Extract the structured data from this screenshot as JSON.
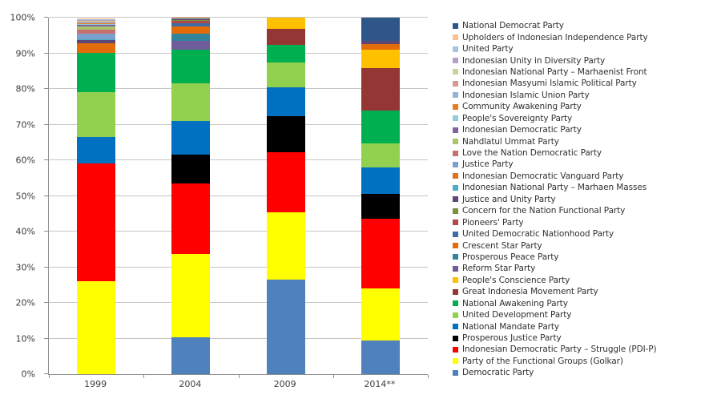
{
  "styles": {
    "background": "#FFFFFF",
    "gridline_color": "#C6C6C6",
    "axis_color": "#8E8E8E",
    "label_color": "#3D3D3D"
  },
  "chart_data": {
    "type": "bar",
    "stacked": true,
    "title": "",
    "xlabel": "",
    "ylabel": "",
    "grid": true,
    "legend_position": "right",
    "stack_note": "series are stacked in reverse legend order (last legend entry at the bottom of each bar); values are percent of seats/votes",
    "categories": [
      "1999",
      "2004",
      "2009",
      "2014**"
    ],
    "y_axis": {
      "min": 0,
      "max": 100,
      "step": 10,
      "unit": "%",
      "tick_labels": [
        "0%",
        "10%",
        "20%",
        "30%",
        "40%",
        "50%",
        "60%",
        "70%",
        "80%",
        "90%",
        "100%"
      ]
    },
    "series": [
      {
        "name": "National Democrat Party",
        "color": "#2E5688",
        "values": [
          0,
          0,
          0,
          6.4
        ]
      },
      {
        "name": "Upholders of Indonesian Independence Party",
        "color": "#FAC090",
        "values": [
          0.22,
          0,
          0,
          0
        ]
      },
      {
        "name": "United Party",
        "color": "#A8C4DF",
        "values": [
          0.22,
          0,
          0,
          0
        ]
      },
      {
        "name": "Indonesian Unity in Diversity Party",
        "color": "#B2A1C7",
        "values": [
          0.22,
          0,
          0,
          0
        ]
      },
      {
        "name": "Indonesian National Party – Marhaenist Front",
        "color": "#C3D69B",
        "values": [
          0.22,
          0,
          0,
          0
        ]
      },
      {
        "name": "Indonesian Masyumi Islamic Political Party",
        "color": "#D99694",
        "values": [
          0.22,
          0,
          0,
          0
        ]
      },
      {
        "name": "Indonesian Islamic Union Party",
        "color": "#95B3D7",
        "values": [
          0.22,
          0,
          0,
          0
        ]
      },
      {
        "name": "Community Awakening Party",
        "color": "#E57E20",
        "values": [
          0.22,
          0,
          0,
          0
        ]
      },
      {
        "name": "People's Sovereignty Party",
        "color": "#92CDDC",
        "values": [
          0.22,
          0,
          0,
          0
        ]
      },
      {
        "name": "Indonesian Democratic Party",
        "color": "#8064A2",
        "values": [
          0.43,
          0,
          0,
          0
        ]
      },
      {
        "name": "Nahdlatul Ummat Party",
        "color": "#A9C46C",
        "values": [
          1.08,
          0,
          0,
          0
        ]
      },
      {
        "name": "Love the Nation Democratic Party",
        "color": "#C9706E",
        "values": [
          1.08,
          0,
          0,
          0
        ]
      },
      {
        "name": "Justice Party",
        "color": "#7BA0CD",
        "values": [
          1.52,
          0,
          0,
          0
        ]
      },
      {
        "name": "Indonesian Democratic Vanguard Party",
        "color": "#E2731C",
        "values": [
          0,
          0.18,
          0,
          0
        ]
      },
      {
        "name": "Indonesian National Party – Marhaen Masses",
        "color": "#4BACC6",
        "values": [
          0.22,
          0.18,
          0,
          0
        ]
      },
      {
        "name": "Justice and Unity Party",
        "color": "#5C4776",
        "values": [
          0.87,
          0.18,
          0,
          1.0
        ]
      },
      {
        "name": "Concern for the Nation Functional Party",
        "color": "#77933C",
        "values": [
          0,
          0.36,
          0,
          0
        ]
      },
      {
        "name": "Pioneers' Party",
        "color": "#B44846",
        "values": [
          0,
          0.55,
          0,
          0
        ]
      },
      {
        "name": "United Democratic Nationhood Party",
        "color": "#3C6DA8",
        "values": [
          0,
          0.91,
          0,
          0
        ]
      },
      {
        "name": "Crescent Star Party",
        "color": "#E36C0A",
        "values": [
          2.81,
          2.0,
          0,
          1.5
        ]
      },
      {
        "name": "Prosperous Peace Party",
        "color": "#31849B",
        "values": [
          0,
          2.18,
          0,
          0
        ]
      },
      {
        "name": "Reform Star Party",
        "color": "#6F5C9B",
        "values": [
          0,
          2.36,
          0,
          0
        ]
      },
      {
        "name": "People's Conscience Party",
        "color": "#FFC000",
        "values": [
          0,
          0,
          3.04,
          5.3
        ]
      },
      {
        "name": "Great Indonesia Movement Party",
        "color": "#943634",
        "values": [
          0,
          0,
          4.64,
          11.9
        ]
      },
      {
        "name": "National Awakening Party",
        "color": "#00B050",
        "values": [
          11.04,
          9.45,
          5.0,
          9.2
        ]
      },
      {
        "name": "United Development Party",
        "color": "#92D050",
        "values": [
          12.55,
          10.55,
          6.79,
          6.7
        ]
      },
      {
        "name": "National Mandate Party",
        "color": "#0070C0",
        "values": [
          7.36,
          9.45,
          8.21,
          7.5
        ]
      },
      {
        "name": "Prosperous Justice Party",
        "color": "#000000",
        "values": [
          0,
          8.18,
          10.18,
          6.9
        ]
      },
      {
        "name": "Indonesian Democratic Party – Struggle (PDI-P)",
        "color": "#FF0000",
        "values": [
          33.12,
          19.82,
          16.79,
          19.5
        ]
      },
      {
        "name": "Party of the Functional Groups (Golkar)",
        "color": "#FFFF00",
        "values": [
          25.97,
          23.27,
          18.93,
          14.6
        ]
      },
      {
        "name": "Democratic Party",
        "color": "#4F81BD",
        "values": [
          0,
          10.36,
          26.43,
          9.5
        ]
      }
    ]
  }
}
